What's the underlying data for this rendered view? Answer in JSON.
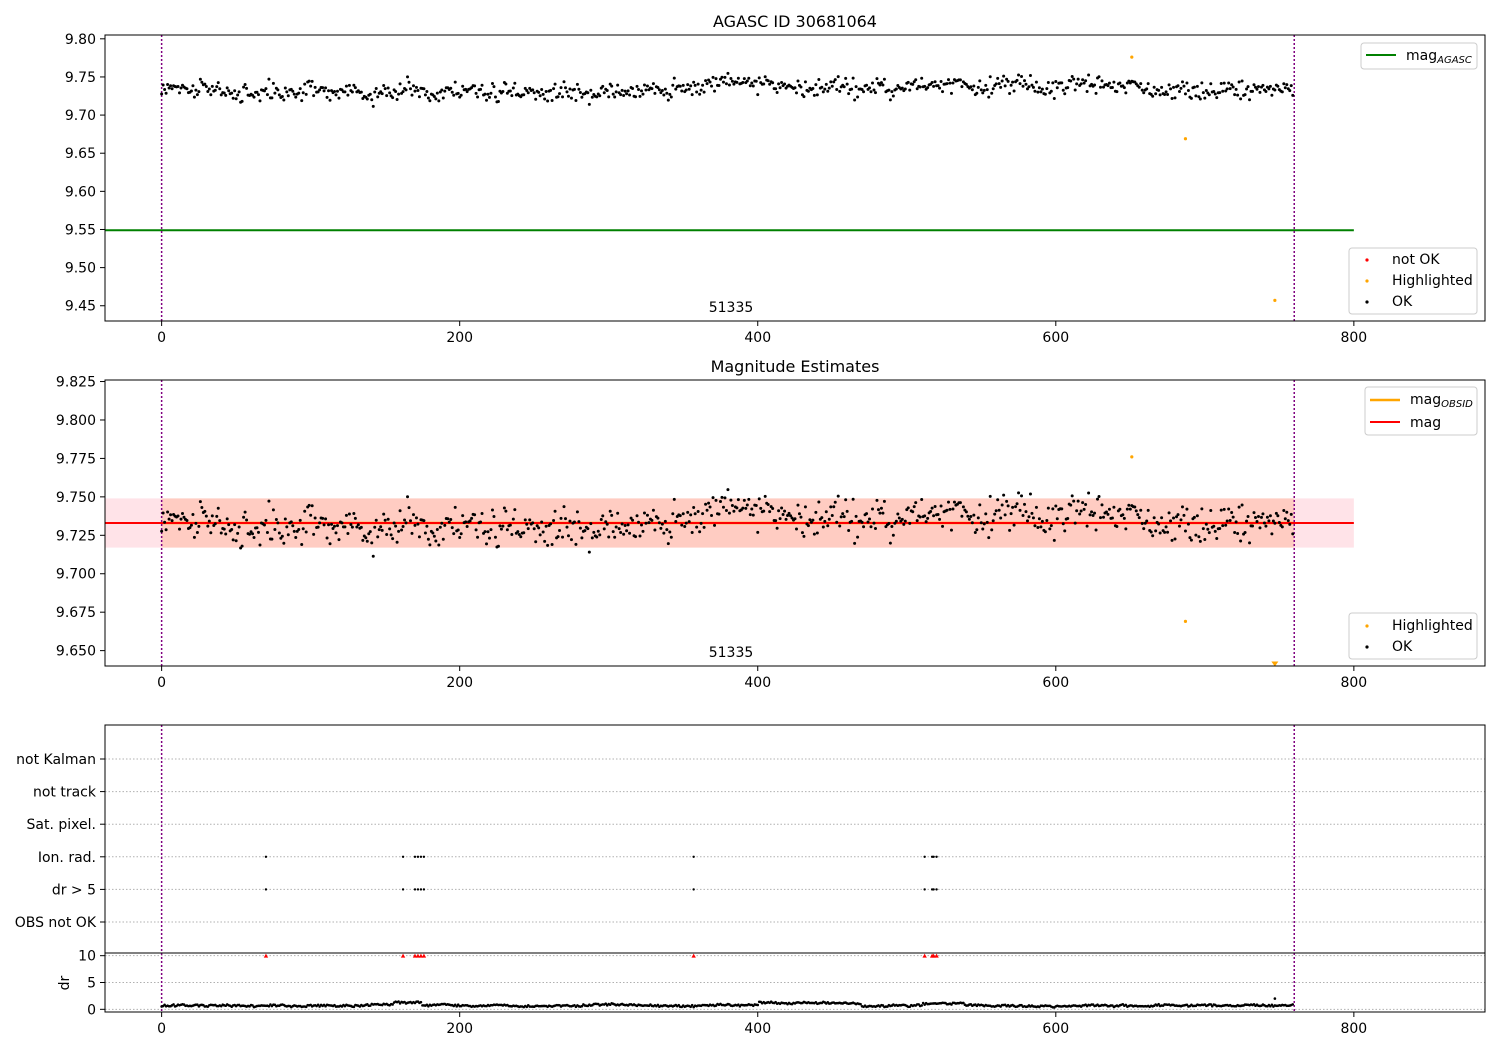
{
  "chart_data": [
    {
      "type": "scatter",
      "title": "AGASC ID 30681064",
      "annotation": "51335",
      "xlim": [
        -38,
        888
      ],
      "ylim": [
        9.43,
        9.805
      ],
      "xticks": [
        "0",
        "200",
        "400",
        "600",
        "800"
      ],
      "xtick_values": [
        0,
        200,
        400,
        600,
        800
      ],
      "yticks": [
        "9.45",
        "9.50",
        "9.55",
        "9.60",
        "9.65",
        "9.70",
        "9.75",
        "9.80"
      ],
      "ytick_values": [
        9.45,
        9.5,
        9.55,
        9.6,
        9.65,
        9.7,
        9.75,
        9.8
      ],
      "vlines": [
        0,
        760
      ],
      "vline_color": "#800080",
      "legend_lines": [
        {
          "name": "mag",
          "sub": "AGASC",
          "color": "#008000"
        }
      ],
      "legend_points": [
        {
          "name": "not OK",
          "color": "#ff0000"
        },
        {
          "name": "Highlighted",
          "color": "#ffa500"
        },
        {
          "name": "OK",
          "color": "#000000"
        }
      ],
      "hline": {
        "y": 9.549,
        "x": [
          -38,
          800
        ],
        "color": "#008000"
      },
      "ok_series": {
        "n": 760,
        "seed": 7,
        "center": 9.733,
        "spread": 0.012,
        "min": 9.69,
        "max": 9.777
      },
      "highlighted": [
        {
          "x": 651,
          "y": 9.776
        },
        {
          "x": 687,
          "y": 9.669
        },
        {
          "x": 747,
          "y": 9.457
        }
      ]
    },
    {
      "type": "scatter",
      "title": "Magnitude Estimates",
      "annotation": "51335",
      "xlim": [
        -38,
        888
      ],
      "ylim": [
        9.64,
        9.826
      ],
      "xticks": [
        "0",
        "200",
        "400",
        "600",
        "800"
      ],
      "xtick_values": [
        0,
        200,
        400,
        600,
        800
      ],
      "yticks": [
        "9.650",
        "9.675",
        "9.700",
        "9.725",
        "9.750",
        "9.775",
        "9.800",
        "9.825"
      ],
      "ytick_values": [
        9.65,
        9.675,
        9.7,
        9.725,
        9.75,
        9.775,
        9.8,
        9.825
      ],
      "vlines": [
        0,
        760
      ],
      "legend_lines": [
        {
          "name": "mag",
          "sub": "OBSID",
          "color": "#ffa500"
        },
        {
          "name": "mag",
          "sub": "",
          "color": "#ff0000"
        }
      ],
      "legend_points": [
        {
          "name": "Highlighted",
          "color": "#ffa500"
        },
        {
          "name": "OK",
          "color": "#000000"
        }
      ],
      "mag_line": {
        "y": 9.733,
        "x": [
          -38,
          800
        ],
        "color": "#ff0000"
      },
      "mag_band": {
        "y0": 9.717,
        "y1": 9.749,
        "x": [
          -38,
          800
        ],
        "color": "#ffc0cb"
      },
      "obsid_band": {
        "y0": 9.717,
        "y1": 9.749,
        "x": [
          0,
          760
        ],
        "color": "#ffa07a"
      },
      "obsid_line": {
        "y": 9.733,
        "x": [
          0,
          760
        ],
        "color": "#ffa500"
      },
      "highlighted": [
        {
          "x": 651,
          "y": 9.776
        },
        {
          "x": 687,
          "y": 9.669
        },
        {
          "x": 747,
          "y": 9.641,
          "marker": "triangle-down"
        }
      ]
    },
    {
      "type": "scatter",
      "xlim": [
        -38,
        888
      ],
      "flags": [
        "not Kalman",
        "not track",
        "Sat. pixel.",
        "Ion. rad.",
        "dr > 5",
        "OBS not OK"
      ],
      "flag_points": {
        "Ion. rad.": [
          70,
          162,
          170,
          172,
          174,
          176,
          357,
          512,
          517,
          518,
          520
        ],
        "dr > 5": [
          70,
          162,
          170,
          172,
          174,
          176,
          357,
          512,
          517,
          518,
          520
        ]
      },
      "vlines": [
        0,
        760
      ]
    },
    {
      "type": "scatter",
      "ylabel": "dr",
      "xlim": [
        -38,
        888
      ],
      "ylim": [
        -0.5,
        10.5
      ],
      "xticks": [
        "0",
        "200",
        "400",
        "600",
        "800"
      ],
      "xtick_values": [
        0,
        200,
        400,
        600,
        800
      ],
      "yticks": [
        "0",
        "5",
        "10"
      ],
      "ytick_values": [
        0,
        5,
        10
      ],
      "vlines": [
        0,
        760
      ],
      "dr_points": {
        "n": 760,
        "seed": 13,
        "base": 0.7,
        "spread": 0.35
      },
      "dr_clipped": [
        70,
        162,
        170,
        172,
        174,
        176,
        357,
        512,
        517,
        518,
        520
      ],
      "dr_clipped_value": 10,
      "dr_outlier": {
        "x": 747,
        "y": 2
      }
    }
  ]
}
